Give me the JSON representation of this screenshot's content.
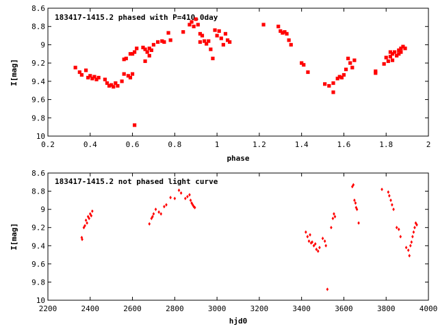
{
  "chart_data": [
    {
      "type": "scatter",
      "title": "183417-1415.2 phased with P=410.0day",
      "xlabel": "phase",
      "ylabel": "I[mag]",
      "xlim": [
        0.2,
        2.0
      ],
      "ylim": [
        8.6,
        10.0
      ],
      "y_inverted": true,
      "grid": false,
      "legend": "none",
      "marker_color": "#ff0000",
      "x_ticks": [
        "0.2",
        "0.4",
        "0.6",
        "0.8",
        "1",
        "1.2",
        "1.4",
        "1.6",
        "1.8",
        "2"
      ],
      "y_ticks": [
        "8.6",
        "8.8",
        "9",
        "9.2",
        "9.4",
        "9.6",
        "9.8",
        "10"
      ],
      "points": [
        [
          0.33,
          9.25
        ],
        [
          0.35,
          9.3
        ],
        [
          0.36,
          9.33
        ],
        [
          0.38,
          9.28
        ],
        [
          0.39,
          9.36
        ],
        [
          0.4,
          9.34
        ],
        [
          0.41,
          9.37
        ],
        [
          0.42,
          9.35
        ],
        [
          0.43,
          9.38
        ],
        [
          0.44,
          9.36
        ],
        [
          0.47,
          9.38
        ],
        [
          0.48,
          9.42
        ],
        [
          0.49,
          9.45
        ],
        [
          0.5,
          9.44
        ],
        [
          0.51,
          9.46
        ],
        [
          0.52,
          9.42
        ],
        [
          0.53,
          9.45
        ],
        [
          0.55,
          9.4
        ],
        [
          0.56,
          9.16
        ],
        [
          0.56,
          9.32
        ],
        [
          0.57,
          9.15
        ],
        [
          0.58,
          9.34
        ],
        [
          0.59,
          9.1
        ],
        [
          0.59,
          9.36
        ],
        [
          0.6,
          9.1
        ],
        [
          0.6,
          9.32
        ],
        [
          0.61,
          9.08
        ],
        [
          0.61,
          9.88
        ],
        [
          0.62,
          9.04
        ],
        [
          0.65,
          9.03
        ],
        [
          0.66,
          9.18
        ],
        [
          0.66,
          9.05
        ],
        [
          0.67,
          9.08
        ],
        [
          0.68,
          9.12
        ],
        [
          0.68,
          9.04
        ],
        [
          0.69,
          9.06
        ],
        [
          0.7,
          9.0
        ],
        [
          0.72,
          8.97
        ],
        [
          0.74,
          8.96
        ],
        [
          0.75,
          8.97
        ],
        [
          0.77,
          8.87
        ],
        [
          0.78,
          8.95
        ],
        [
          0.84,
          8.86
        ],
        [
          0.87,
          8.78
        ],
        [
          0.88,
          8.75
        ],
        [
          0.89,
          8.8
        ],
        [
          0.9,
          8.72
        ],
        [
          0.91,
          8.78
        ],
        [
          0.92,
          8.97
        ],
        [
          0.92,
          8.88
        ],
        [
          0.93,
          8.9
        ],
        [
          0.94,
          8.96
        ],
        [
          0.95,
          8.99
        ],
        [
          0.96,
          8.96
        ],
        [
          0.97,
          9.05
        ],
        [
          0.98,
          9.15
        ],
        [
          0.99,
          8.84
        ],
        [
          1.0,
          8.9
        ],
        [
          1.01,
          8.85
        ],
        [
          1.02,
          8.93
        ],
        [
          1.03,
          9.0
        ],
        [
          1.04,
          8.88
        ],
        [
          1.05,
          8.95
        ],
        [
          1.06,
          8.97
        ],
        [
          1.22,
          8.78
        ],
        [
          1.29,
          8.8
        ],
        [
          1.3,
          8.85
        ],
        [
          1.31,
          8.87
        ],
        [
          1.32,
          8.86
        ],
        [
          1.33,
          8.88
        ],
        [
          1.34,
          8.95
        ],
        [
          1.35,
          9.0
        ],
        [
          1.4,
          9.2
        ],
        [
          1.41,
          9.22
        ],
        [
          1.43,
          9.3
        ],
        [
          1.51,
          9.43
        ],
        [
          1.53,
          9.45
        ],
        [
          1.55,
          9.52
        ],
        [
          1.55,
          9.42
        ],
        [
          1.57,
          9.37
        ],
        [
          1.58,
          9.35
        ],
        [
          1.59,
          9.36
        ],
        [
          1.6,
          9.33
        ],
        [
          1.61,
          9.27
        ],
        [
          1.62,
          9.15
        ],
        [
          1.63,
          9.2
        ],
        [
          1.64,
          9.25
        ],
        [
          1.65,
          9.17
        ],
        [
          1.75,
          9.31
        ],
        [
          1.75,
          9.29
        ],
        [
          1.79,
          9.21
        ],
        [
          1.8,
          9.14
        ],
        [
          1.81,
          9.18
        ],
        [
          1.82,
          9.13
        ],
        [
          1.83,
          9.1
        ],
        [
          1.83,
          9.17
        ],
        [
          1.84,
          9.08
        ],
        [
          1.85,
          9.12
        ],
        [
          1.86,
          9.06
        ],
        [
          1.87,
          9.04
        ],
        [
          1.87,
          9.08
        ],
        [
          1.88,
          9.02
        ],
        [
          1.89,
          9.04
        ],
        [
          1.82,
          9.08
        ],
        [
          1.86,
          9.1
        ]
      ]
    },
    {
      "type": "scatter",
      "title": "183417-1415.2 not phased light curve",
      "xlabel": "hjd0",
      "ylabel": "I[mag]",
      "xlim": [
        2200,
        4000
      ],
      "ylim": [
        8.6,
        10.0
      ],
      "y_inverted": true,
      "grid": false,
      "legend": "none",
      "marker_color": "#ff0000",
      "x_ticks": [
        "2200",
        "2400",
        "2600",
        "2800",
        "3000",
        "3200",
        "3400",
        "3600",
        "3800",
        "4000"
      ],
      "y_ticks": [
        "8.6",
        "8.8",
        "9",
        "9.2",
        "9.4",
        "9.6",
        "9.8",
        "10"
      ],
      "points": [
        [
          2360,
          9.31
        ],
        [
          2362,
          9.33
        ],
        [
          2370,
          9.2
        ],
        [
          2375,
          9.18
        ],
        [
          2380,
          9.12
        ],
        [
          2385,
          9.15
        ],
        [
          2390,
          9.08
        ],
        [
          2395,
          9.1
        ],
        [
          2400,
          9.05
        ],
        [
          2405,
          9.07
        ],
        [
          2410,
          9.02
        ],
        [
          2680,
          9.16
        ],
        [
          2690,
          9.1
        ],
        [
          2695,
          9.08
        ],
        [
          2700,
          9.05
        ],
        [
          2710,
          9.0
        ],
        [
          2725,
          9.03
        ],
        [
          2735,
          9.05
        ],
        [
          2750,
          8.97
        ],
        [
          2760,
          8.95
        ],
        [
          2780,
          8.87
        ],
        [
          2800,
          8.88
        ],
        [
          2820,
          8.79
        ],
        [
          2830,
          8.82
        ],
        [
          2850,
          8.88
        ],
        [
          2860,
          8.86
        ],
        [
          2870,
          8.84
        ],
        [
          2875,
          8.9
        ],
        [
          2880,
          8.93
        ],
        [
          2885,
          8.95
        ],
        [
          2890,
          8.97
        ],
        [
          2895,
          8.98
        ],
        [
          3420,
          9.25
        ],
        [
          3428,
          9.3
        ],
        [
          3435,
          9.35
        ],
        [
          3440,
          9.28
        ],
        [
          3445,
          9.37
        ],
        [
          3450,
          9.36
        ],
        [
          3458,
          9.4
        ],
        [
          3465,
          9.38
        ],
        [
          3470,
          9.44
        ],
        [
          3478,
          9.46
        ],
        [
          3485,
          9.42
        ],
        [
          3500,
          9.32
        ],
        [
          3510,
          9.35
        ],
        [
          3515,
          9.4
        ],
        [
          3522,
          9.88
        ],
        [
          3540,
          9.2
        ],
        [
          3548,
          9.1
        ],
        [
          3553,
          9.05
        ],
        [
          3558,
          9.08
        ],
        [
          3640,
          8.75
        ],
        [
          3645,
          8.73
        ],
        [
          3650,
          8.9
        ],
        [
          3655,
          8.93
        ],
        [
          3658,
          8.98
        ],
        [
          3662,
          9.0
        ],
        [
          3670,
          9.15
        ],
        [
          3780,
          8.78
        ],
        [
          3810,
          8.81
        ],
        [
          3815,
          8.85
        ],
        [
          3822,
          8.9
        ],
        [
          3828,
          8.95
        ],
        [
          3835,
          9.0
        ],
        [
          3850,
          9.2
        ],
        [
          3860,
          9.22
        ],
        [
          3868,
          9.3
        ],
        [
          3895,
          9.42
        ],
        [
          3905,
          9.45
        ],
        [
          3910,
          9.51
        ],
        [
          3915,
          9.4
        ],
        [
          3920,
          9.36
        ],
        [
          3925,
          9.3
        ],
        [
          3930,
          9.25
        ],
        [
          3935,
          9.2
        ],
        [
          3940,
          9.15
        ],
        [
          3945,
          9.17
        ]
      ]
    }
  ]
}
